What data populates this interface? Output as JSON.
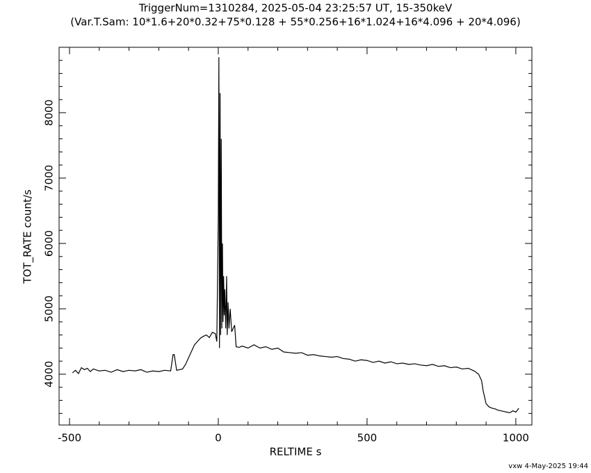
{
  "chart_data": {
    "type": "line",
    "title": "TriggerNum=1310284, 2025-05-04 23:25:57 UT, 15-350keV",
    "subtitle": "(Var.T.Sam: 10*1.6+20*0.32+75*0.128  +  55*0.256+16*1.024+16*4.096  +  20*4.096)",
    "x_label": "RELTIME  s",
    "y_label": "TOT_RATE  count/s",
    "footer": "vxw  4-May-2025 19:44",
    "xlim": [
      -535,
      1054
    ],
    "ylim": [
      3223,
      9000
    ],
    "xticks": [
      -500,
      0,
      500,
      1000
    ],
    "yticks": [
      4000,
      5000,
      6000,
      7000,
      8000
    ],
    "x": [
      -490,
      -480,
      -470,
      -460,
      -450,
      -440,
      -430,
      -420,
      -400,
      -380,
      -360,
      -340,
      -320,
      -300,
      -280,
      -260,
      -240,
      -220,
      -200,
      -180,
      -160,
      -152,
      -148,
      -140,
      -120,
      -110,
      -100,
      -90,
      -80,
      -70,
      -60,
      -50,
      -40,
      -30,
      -20,
      -10,
      -5,
      0,
      2,
      4,
      6,
      8,
      10,
      12,
      14,
      16,
      18,
      20,
      22,
      25,
      28,
      30,
      33,
      36,
      40,
      45,
      50,
      55,
      60,
      70,
      80,
      100,
      120,
      140,
      160,
      180,
      200,
      220,
      240,
      260,
      280,
      300,
      320,
      340,
      360,
      380,
      400,
      420,
      440,
      460,
      480,
      500,
      520,
      540,
      560,
      580,
      600,
      620,
      640,
      660,
      680,
      700,
      720,
      740,
      760,
      780,
      800,
      820,
      840,
      860,
      875,
      885,
      890,
      895,
      900,
      910,
      920,
      930,
      940,
      950,
      960,
      970,
      980,
      990,
      1000,
      1010
    ],
    "series": [
      {
        "color": "#000000",
        "values": [
          4020,
          4060,
          4010,
          4100,
          4070,
          4090,
          4040,
          4080,
          4050,
          4060,
          4030,
          4070,
          4040,
          4060,
          4050,
          4070,
          4030,
          4050,
          4040,
          4060,
          4050,
          4300,
          4300,
          4060,
          4080,
          4150,
          4250,
          4350,
          4450,
          4500,
          4550,
          4580,
          4600,
          4560,
          4640,
          4620,
          4500,
          6400,
          8850,
          4400,
          8300,
          4600,
          7600,
          4700,
          6000,
          4800,
          5500,
          4900,
          5300,
          4700,
          5500,
          4600,
          5100,
          4700,
          5000,
          4650,
          4700,
          4750,
          4420,
          4410,
          4430,
          4400,
          4450,
          4400,
          4420,
          4380,
          4400,
          4340,
          4330,
          4320,
          4330,
          4290,
          4300,
          4280,
          4270,
          4260,
          4270,
          4240,
          4230,
          4200,
          4220,
          4210,
          4180,
          4200,
          4170,
          4190,
          4160,
          4170,
          4150,
          4160,
          4140,
          4130,
          4150,
          4120,
          4130,
          4100,
          4110,
          4080,
          4090,
          4050,
          4000,
          3900,
          3750,
          3650,
          3550,
          3500,
          3480,
          3470,
          3450,
          3440,
          3430,
          3420,
          3410,
          3440,
          3420,
          3480
        ]
      }
    ]
  }
}
